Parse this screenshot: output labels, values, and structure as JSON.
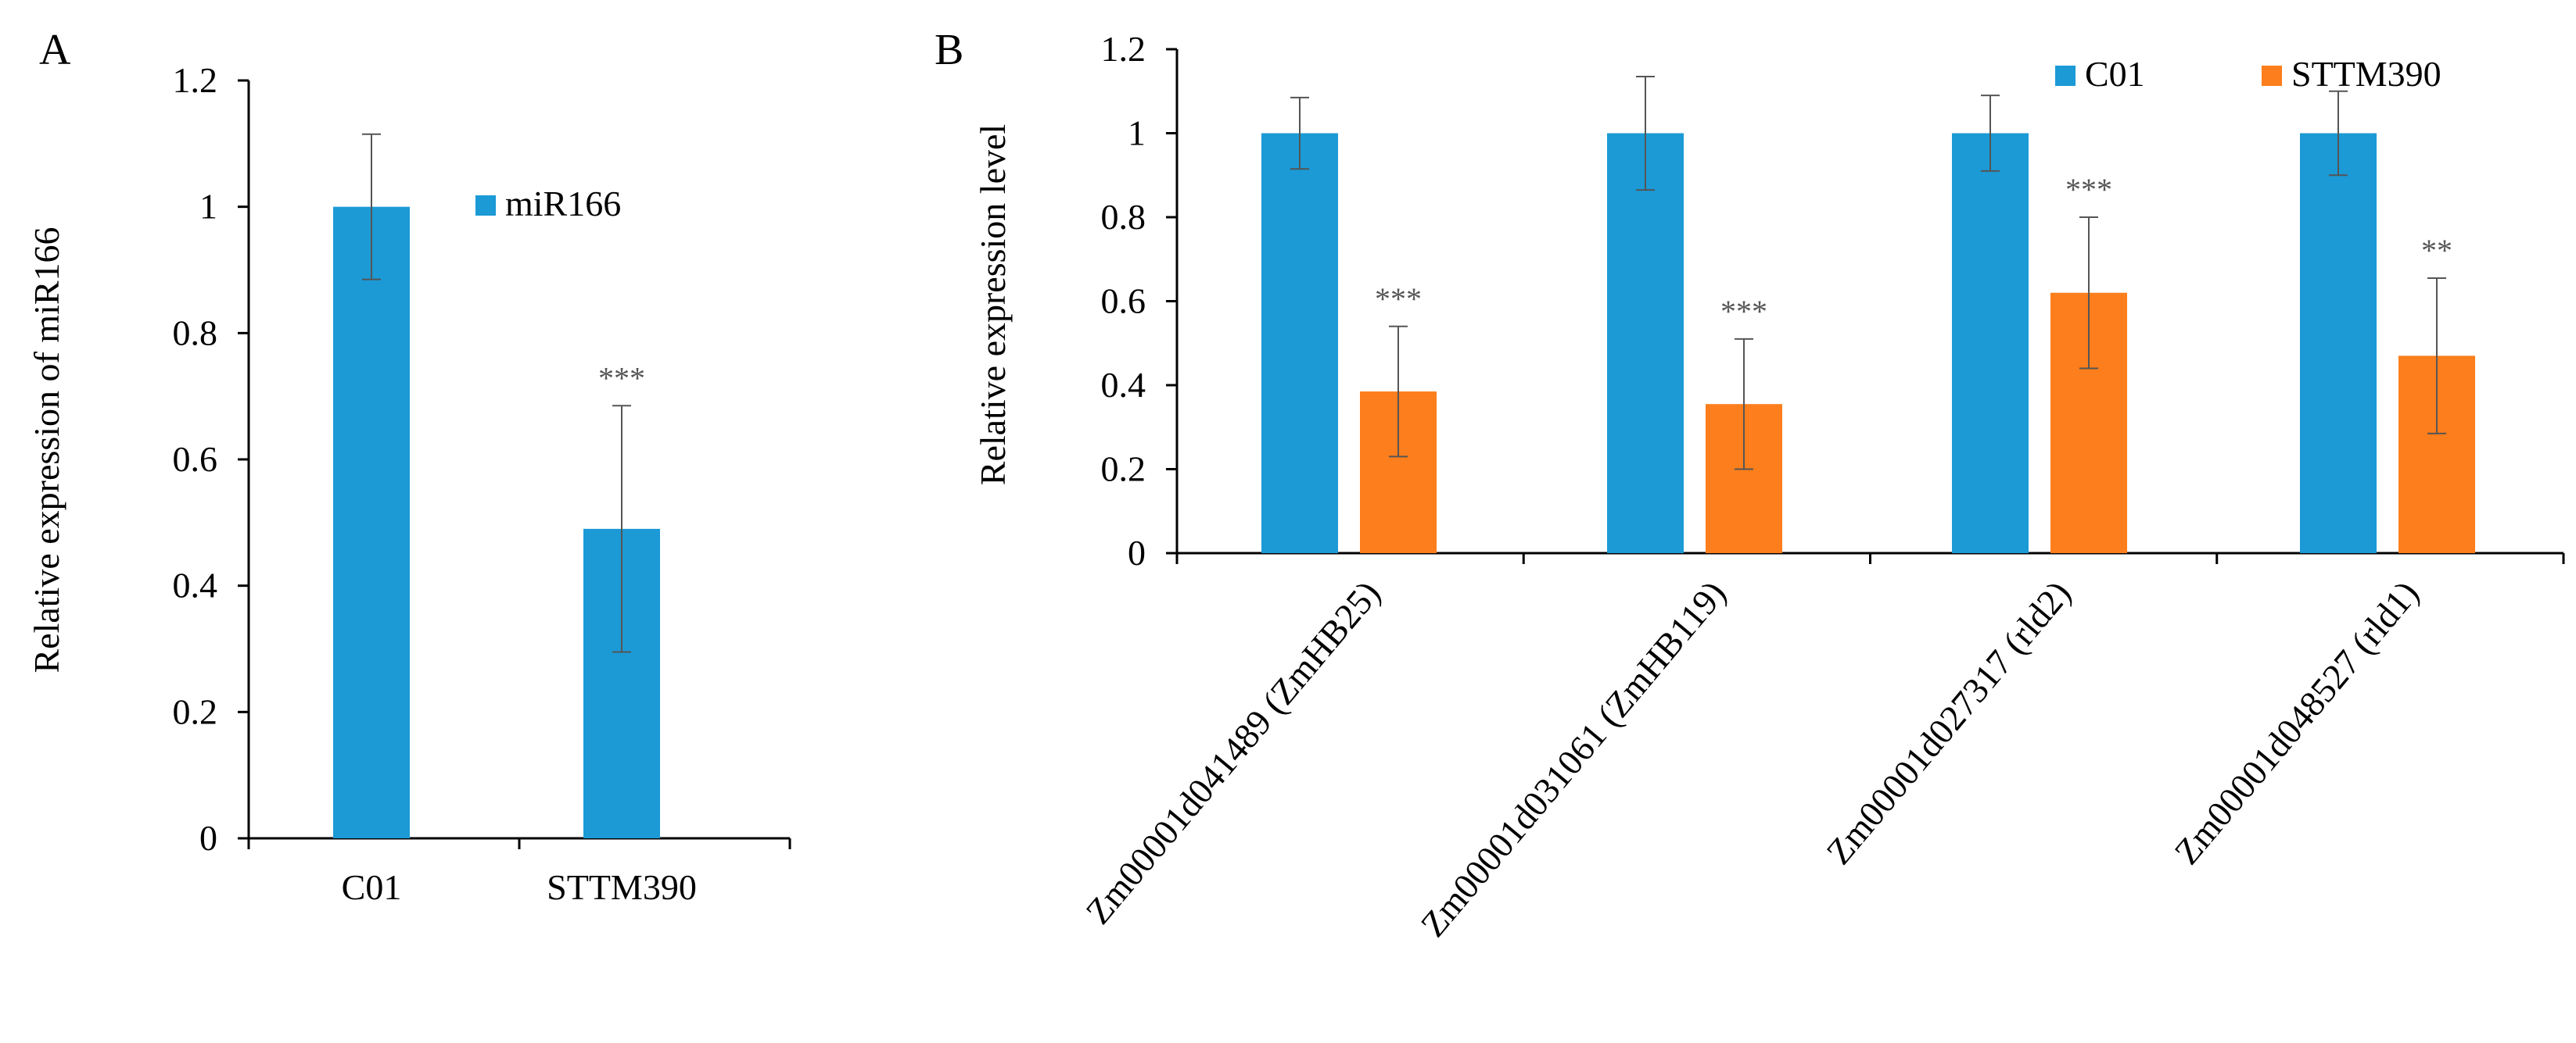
{
  "panels": {
    "a": {
      "letter": "A"
    },
    "b": {
      "letter": "B"
    }
  },
  "colors": {
    "c01": "#1b9ad6",
    "sttm390": "#fc7e1c",
    "axis": "#000000",
    "error_bar": "#555555",
    "star": "#555555"
  },
  "chart_data": [
    {
      "type": "bar",
      "panel": "A",
      "title": "",
      "xlabel": "",
      "ylabel": "Relative  expression of miR166",
      "ylim": [
        0,
        1.2
      ],
      "yticks": [
        "0",
        "0.2",
        "0.4",
        "0.6",
        "0.8",
        "1",
        "1.2"
      ],
      "grid": false,
      "legend_position": "top-right",
      "categories": [
        "C01",
        "STTM390"
      ],
      "series": [
        {
          "name": "miR166",
          "values": [
            1.0,
            0.49
          ],
          "errors": [
            0.115,
            0.195
          ],
          "significance": [
            "",
            "***"
          ]
        }
      ]
    },
    {
      "type": "bar",
      "panel": "B",
      "title": "",
      "xlabel": "",
      "ylabel": "Relative  expression level",
      "ylim": [
        0,
        1.2
      ],
      "yticks": [
        "0",
        "0.2",
        "0.4",
        "0.6",
        "0.8",
        "1",
        "1.2"
      ],
      "grid": false,
      "legend_position": "top-right",
      "categories": [
        "Zm00001d041489  (ZmHB25)",
        "Zm00001d031061 (ZmHB119)",
        "Zm00001d027317  (rld2)",
        "Zm00001d048527 (rld1)"
      ],
      "series": [
        {
          "name": "C01",
          "values": [
            1.0,
            1.0,
            1.0,
            1.0
          ],
          "errors": [
            0.085,
            0.135,
            0.09,
            0.1
          ],
          "significance": [
            "",
            "",
            "",
            ""
          ]
        },
        {
          "name": "STTM390",
          "values": [
            0.385,
            0.355,
            0.62,
            0.47
          ],
          "errors": [
            0.155,
            0.155,
            0.18,
            0.185
          ],
          "significance": [
            "***",
            "***",
            "***",
            "**"
          ]
        }
      ]
    }
  ]
}
